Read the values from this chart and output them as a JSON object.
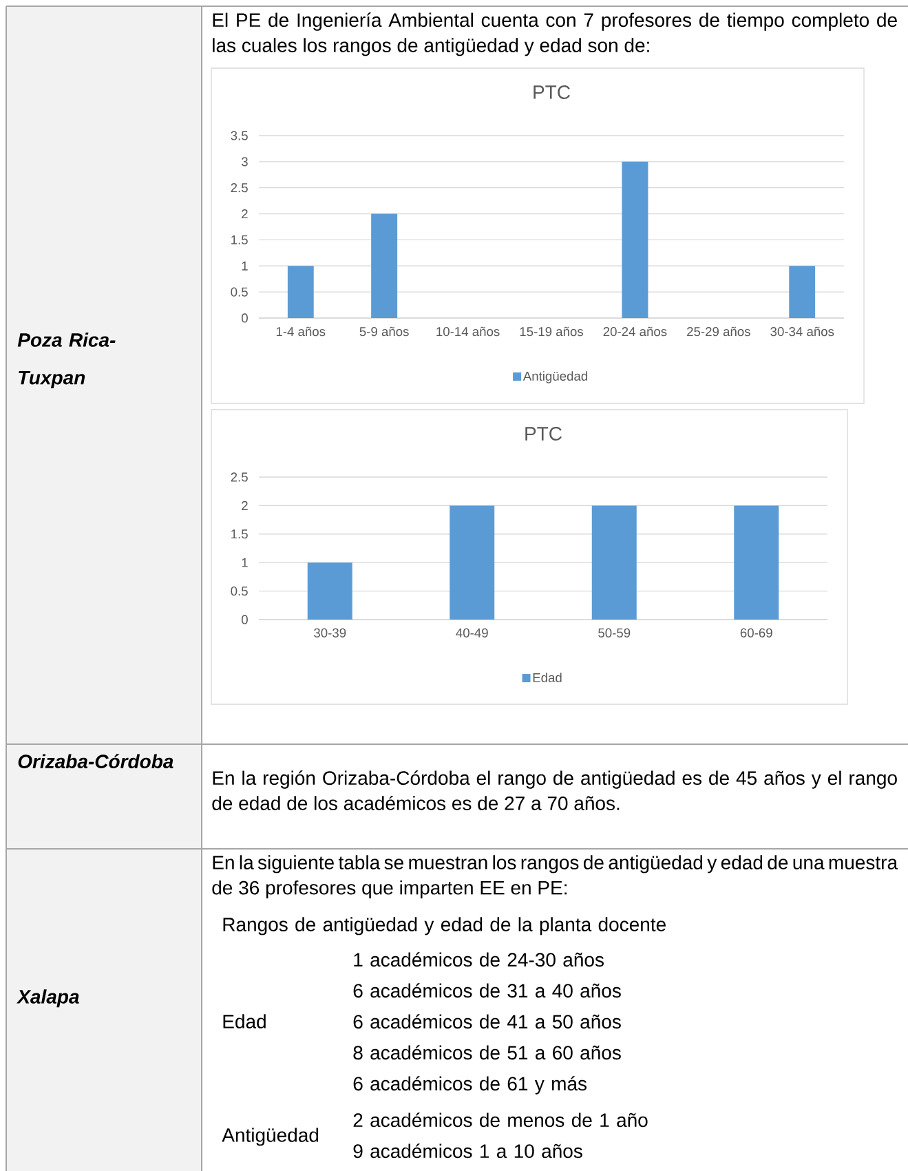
{
  "chart_data": [
    {
      "type": "other",
      "annotations": [
        "Poza Rica-Tuxpan",
        "El PE de Ingeniería Ambiental cuenta con 7 profesores de tiempo completo de las cuales los rangos de antigüedad y edad son de:"
      ]
    },
    {
      "type": "bar",
      "title": "PTC",
      "categories": [
        "1-4 años",
        "5-9 años",
        "10-14 años",
        "15-19 años",
        "20-24 años",
        "25-29 años",
        "30-34 años"
      ],
      "series": [
        {
          "name": "Antigüedad",
          "color": "#5b9bd5",
          "values": [
            1,
            2,
            0,
            0,
            3,
            0,
            1
          ]
        }
      ],
      "ylim": [
        0,
        3.5
      ],
      "yticks": [
        0,
        0.5,
        1,
        1.5,
        2,
        2.5,
        3,
        3.5
      ],
      "grid": "y",
      "legend": "bottom"
    },
    {
      "type": "bar",
      "title": "PTC",
      "categories": [
        "30-39",
        "40-49",
        "50-59",
        "60-69"
      ],
      "series": [
        {
          "name": "Edad",
          "color": "#5b9bd5",
          "values": [
            1,
            2,
            2,
            2
          ]
        }
      ],
      "ylim": [
        0,
        2.5
      ],
      "yticks": [
        0,
        0.5,
        1,
        1.5,
        2,
        2.5
      ],
      "grid": "y",
      "legend": "bottom"
    },
    {
      "type": "other",
      "annotations": [
        "Orizaba-Córdoba",
        "En la región Orizaba-Córdoba el rango de antigüedad es de 45 años y el rango de edad de los académicos es de 27 a 70 años.",
        "Xalapa",
        "En la siguiente tabla se muestran los rangos de antigüedad y edad de una muestra de 36 profesores que imparten EE en PE:",
        "Rangos de antigüedad y edad de la planta docente",
        "Edad",
        "1 académicos de 24-30 años",
        "6 académicos de 31 a 40 años",
        "6 académicos de 41 a 50 años",
        "8 académicos de 51 a 60 años",
        "6 académicos de 61 y más",
        "Antigüedad",
        "2 académicos de menos de 1 año",
        "9 académicos 1 a 10 años"
      ]
    }
  ]
}
